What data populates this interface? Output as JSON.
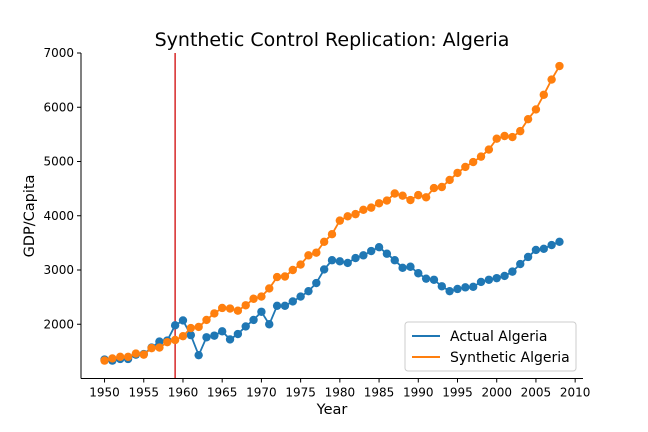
{
  "chart_data": {
    "type": "line",
    "title": "Synthetic Control Replication: Algeria",
    "xlabel": "Year",
    "ylabel": "GDP/Capita",
    "xlim": [
      1947,
      2011
    ],
    "ylim": [
      1000,
      7000
    ],
    "xticks": [
      1950,
      1955,
      1960,
      1965,
      1970,
      1975,
      1980,
      1985,
      1990,
      1995,
      2000,
      2005,
      2010
    ],
    "yticks": [
      2000,
      3000,
      4000,
      5000,
      6000,
      7000
    ],
    "grid": false,
    "legend_position": "lower-right",
    "vline": {
      "x": 1959,
      "color": "#d62728"
    },
    "x": [
      1950,
      1951,
      1952,
      1953,
      1954,
      1955,
      1956,
      1957,
      1958,
      1959,
      1960,
      1961,
      1962,
      1963,
      1964,
      1965,
      1966,
      1967,
      1968,
      1969,
      1970,
      1971,
      1972,
      1973,
      1974,
      1975,
      1976,
      1977,
      1978,
      1979,
      1980,
      1981,
      1982,
      1983,
      1984,
      1985,
      1986,
      1987,
      1988,
      1989,
      1990,
      1991,
      1992,
      1993,
      1994,
      1995,
      1996,
      1997,
      1998,
      1999,
      2000,
      2001,
      2002,
      2003,
      2004,
      2005,
      2006,
      2007,
      2008
    ],
    "series": [
      {
        "name": "Actual Algeria",
        "color": "#1f77b4",
        "values": [
          1350,
          1330,
          1360,
          1360,
          1440,
          1450,
          1570,
          1680,
          1700,
          1980,
          2070,
          1800,
          1430,
          1760,
          1790,
          1870,
          1720,
          1820,
          1960,
          2080,
          2230,
          2000,
          2340,
          2340,
          2420,
          2510,
          2610,
          2760,
          3010,
          3180,
          3160,
          3130,
          3220,
          3270,
          3350,
          3420,
          3300,
          3180,
          3040,
          3060,
          2940,
          2840,
          2820,
          2700,
          2610,
          2650,
          2680,
          2690,
          2780,
          2820,
          2850,
          2890,
          2970,
          3110,
          3240,
          3370,
          3390,
          3460,
          3520
        ]
      },
      {
        "name": "Synthetic Algeria",
        "color": "#ff7f0e",
        "values": [
          1330,
          1370,
          1400,
          1400,
          1460,
          1440,
          1560,
          1570,
          1670,
          1710,
          1780,
          1930,
          1950,
          2080,
          2200,
          2300,
          2290,
          2250,
          2350,
          2470,
          2510,
          2660,
          2870,
          2880,
          3000,
          3100,
          3270,
          3320,
          3520,
          3660,
          3910,
          3990,
          4030,
          4110,
          4150,
          4230,
          4280,
          4410,
          4370,
          4290,
          4380,
          4340,
          4510,
          4530,
          4660,
          4790,
          4900,
          4990,
          5090,
          5220,
          5420,
          5470,
          5450,
          5560,
          5780,
          5960,
          6230,
          6510,
          6760
        ]
      }
    ]
  }
}
